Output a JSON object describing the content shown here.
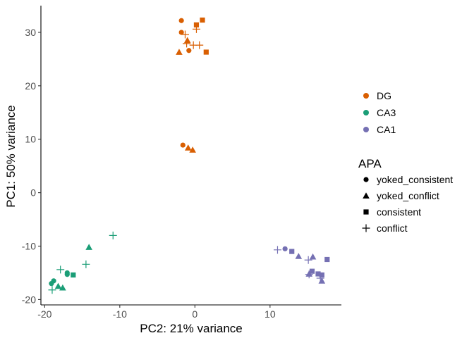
{
  "chart_data": {
    "type": "scatter",
    "xlabel": "PC2: 21% variance",
    "ylabel": "PC1: 50% variance",
    "xlim": [
      -20.5,
      19.5
    ],
    "ylim": [
      -21,
      35
    ],
    "xticks": [
      -20,
      -10,
      0,
      10
    ],
    "yticks": [
      -20,
      -10,
      0,
      10,
      20,
      30
    ],
    "grid": false,
    "colors": {
      "DG": "#d95f02",
      "CA3": "#1b9e77",
      "CA1": "#7570b3"
    },
    "color_legend": {
      "title": "",
      "entries": [
        "DG",
        "CA3",
        "CA1"
      ],
      "position": "right"
    },
    "shape_legend": {
      "title": "APA",
      "entries": [
        {
          "label": "yoked_consistent",
          "shape": "circle"
        },
        {
          "label": "yoked_conflict",
          "shape": "triangle"
        },
        {
          "label": "consistent",
          "shape": "square"
        },
        {
          "label": "conflict",
          "shape": "plus"
        }
      ],
      "position": "right"
    },
    "points": [
      {
        "x": -1.8,
        "y": 32.2,
        "region": "DG",
        "apa": "yoked_consistent"
      },
      {
        "x": -1.8,
        "y": 30.0,
        "region": "DG",
        "apa": "yoked_consistent"
      },
      {
        "x": -0.8,
        "y": 26.6,
        "region": "DG",
        "apa": "yoked_consistent"
      },
      {
        "x": -1.6,
        "y": 8.9,
        "region": "DG",
        "apa": "yoked_consistent"
      },
      {
        "x": -1.0,
        "y": 28.5,
        "region": "DG",
        "apa": "yoked_conflict"
      },
      {
        "x": -2.1,
        "y": 26.3,
        "region": "DG",
        "apa": "yoked_conflict"
      },
      {
        "x": -0.9,
        "y": 8.4,
        "region": "DG",
        "apa": "yoked_conflict"
      },
      {
        "x": -0.3,
        "y": 8.0,
        "region": "DG",
        "apa": "yoked_conflict"
      },
      {
        "x": 1.0,
        "y": 32.3,
        "region": "DG",
        "apa": "consistent"
      },
      {
        "x": 0.2,
        "y": 31.4,
        "region": "DG",
        "apa": "consistent"
      },
      {
        "x": 1.5,
        "y": 26.3,
        "region": "DG",
        "apa": "consistent"
      },
      {
        "x": -1.3,
        "y": 29.6,
        "region": "DG",
        "apa": "conflict"
      },
      {
        "x": 0.2,
        "y": 30.6,
        "region": "DG",
        "apa": "conflict"
      },
      {
        "x": -1.1,
        "y": 27.9,
        "region": "DG",
        "apa": "conflict"
      },
      {
        "x": -0.2,
        "y": 27.6,
        "region": "DG",
        "apa": "conflict"
      },
      {
        "x": 0.6,
        "y": 27.6,
        "region": "DG",
        "apa": "conflict"
      },
      {
        "x": -18.8,
        "y": -16.5,
        "region": "CA3",
        "apa": "yoked_consistent"
      },
      {
        "x": -19.1,
        "y": -17.0,
        "region": "CA3",
        "apa": "yoked_consistent"
      },
      {
        "x": -17.0,
        "y": -15.0,
        "region": "CA3",
        "apa": "yoked_consistent"
      },
      {
        "x": -17.0,
        "y": -15.3,
        "region": "CA3",
        "apa": "yoked_consistent"
      },
      {
        "x": -14.1,
        "y": -10.2,
        "region": "CA3",
        "apa": "yoked_conflict"
      },
      {
        "x": -18.2,
        "y": -17.5,
        "region": "CA3",
        "apa": "yoked_conflict"
      },
      {
        "x": -17.6,
        "y": -17.8,
        "region": "CA3",
        "apa": "yoked_conflict"
      },
      {
        "x": -16.2,
        "y": -15.4,
        "region": "CA3",
        "apa": "consistent"
      },
      {
        "x": -10.9,
        "y": -8.0,
        "region": "CA3",
        "apa": "conflict"
      },
      {
        "x": -14.5,
        "y": -13.4,
        "region": "CA3",
        "apa": "conflict"
      },
      {
        "x": -17.9,
        "y": -14.4,
        "region": "CA3",
        "apa": "conflict"
      },
      {
        "x": -19.0,
        "y": -18.2,
        "region": "CA3",
        "apa": "conflict"
      },
      {
        "x": 12.0,
        "y": -10.5,
        "region": "CA1",
        "apa": "yoked_consistent"
      },
      {
        "x": 13.8,
        "y": -11.9,
        "region": "CA1",
        "apa": "yoked_conflict"
      },
      {
        "x": 15.7,
        "y": -12.0,
        "region": "CA1",
        "apa": "yoked_conflict"
      },
      {
        "x": 15.2,
        "y": -15.2,
        "region": "CA1",
        "apa": "yoked_conflict"
      },
      {
        "x": 16.9,
        "y": -16.5,
        "region": "CA1",
        "apa": "yoked_conflict"
      },
      {
        "x": 12.9,
        "y": -11.0,
        "region": "CA1",
        "apa": "consistent"
      },
      {
        "x": 17.6,
        "y": -12.5,
        "region": "CA1",
        "apa": "consistent"
      },
      {
        "x": 15.6,
        "y": -14.7,
        "region": "CA1",
        "apa": "consistent"
      },
      {
        "x": 16.4,
        "y": -15.2,
        "region": "CA1",
        "apa": "consistent"
      },
      {
        "x": 16.9,
        "y": -15.4,
        "region": "CA1",
        "apa": "consistent"
      },
      {
        "x": 11.0,
        "y": -10.7,
        "region": "CA1",
        "apa": "conflict"
      },
      {
        "x": 15.1,
        "y": -12.6,
        "region": "CA1",
        "apa": "conflict"
      },
      {
        "x": 15.2,
        "y": -15.3,
        "region": "CA1",
        "apa": "conflict"
      },
      {
        "x": 16.7,
        "y": -16.0,
        "region": "CA1",
        "apa": "conflict"
      }
    ]
  }
}
